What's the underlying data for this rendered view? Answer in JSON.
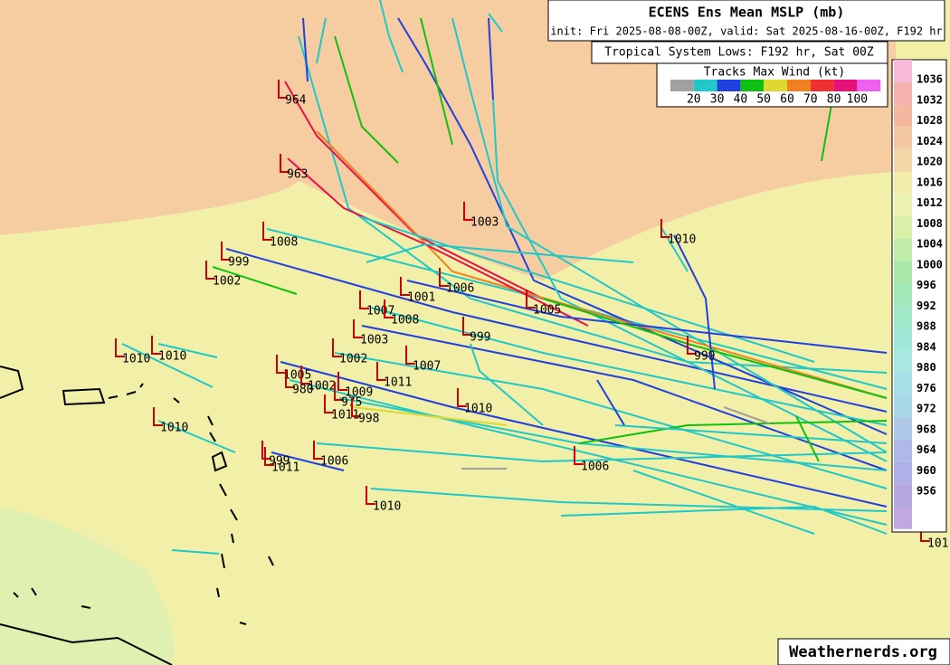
{
  "header": {
    "title": "ECENS Ens Mean MSLP (mb)",
    "subtitle": "init: Fri 2025-08-08-00Z, valid: Sat 2025-08-16-00Z, F192 hr"
  },
  "legend": {
    "title": "Tropical System Lows: F192 hr, Sat 00Z",
    "wind_title": "Tracks Max Wind (kt)",
    "wind_labels": [
      "20",
      "30",
      "40",
      "50",
      "60",
      "70",
      "80",
      "100"
    ]
  },
  "colorbar": {
    "labels": [
      "1036",
      "1032",
      "1028",
      "1024",
      "1020",
      "1016",
      "1012",
      "1008",
      "1004",
      "1000",
      "996",
      "992",
      "988",
      "984",
      "980",
      "976",
      "972",
      "968",
      "964",
      "960",
      "956"
    ]
  },
  "lows": [
    "964",
    "963",
    "1008",
    "999",
    "1002",
    "1003",
    "1010",
    "1006",
    "1001",
    "1007",
    "1008",
    "1005",
    "999",
    "1003",
    "1010",
    "1010",
    "1002",
    "1007",
    "999",
    "1005",
    "1011",
    "1002",
    "980",
    "1009",
    "975",
    "1010",
    "1011",
    "998",
    "1010",
    "999",
    "1011",
    "1006",
    "1006",
    "1010",
    "101"
  ],
  "watermark": "Weathernerds.org"
}
